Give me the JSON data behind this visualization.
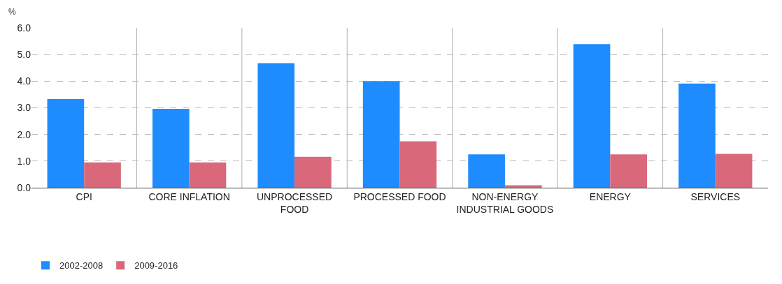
{
  "chart_data": {
    "type": "bar",
    "ylabel": "%",
    "categories": [
      "CPI",
      "CORE INFLATION",
      "UNPROCESSED FOOD",
      "PROCESSED FOOD",
      "NON-ENERGY INDUSTRIAL GOODS",
      "ENERGY",
      "SERVICES"
    ],
    "series": [
      {
        "name": "2002-2008",
        "color": "#1e8cff",
        "values": [
          3.33,
          2.96,
          4.68,
          4.0,
          1.25,
          5.39,
          3.91
        ]
      },
      {
        "name": "2009-2016",
        "color": "#d9697a",
        "values": [
          0.95,
          0.95,
          1.16,
          1.74,
          0.09,
          1.25,
          1.27
        ]
      }
    ],
    "ylim": [
      0,
      6
    ],
    "yticks": [
      {
        "value": 0,
        "label": "0.0"
      },
      {
        "value": 1,
        "label": "1.0"
      },
      {
        "value": 2,
        "label": "2.0"
      },
      {
        "value": 3,
        "label": "3.0"
      },
      {
        "value": 4,
        "label": "4.0"
      },
      {
        "value": 5,
        "label": "5.0"
      },
      {
        "value": 6,
        "label": "6.0"
      }
    ],
    "grid": true,
    "legend": "bottom left"
  }
}
